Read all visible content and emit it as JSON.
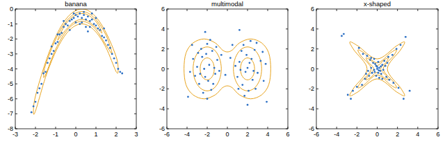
{
  "chart_data": [
    {
      "type": "scatter",
      "title": "banana",
      "xlim": [
        -3,
        3
      ],
      "ylim": [
        -8,
        0
      ],
      "xticks": [
        -3,
        -2,
        -1,
        0,
        1,
        2,
        3
      ],
      "yticks": [
        -8,
        -7,
        -6,
        -5,
        -4,
        -3,
        -2,
        -1,
        0
      ],
      "grid": false,
      "series": [
        {
          "type": "scatter",
          "color": "#2b6fc4",
          "marker": "dot",
          "x": [
            -2.2,
            -2.1,
            -2.0,
            -1.9,
            -1.8,
            -1.7,
            -1.6,
            -1.5,
            -1.4,
            -1.3,
            -1.2,
            -1.1,
            -1.0,
            -0.9,
            -0.8,
            -0.7,
            -0.6,
            -0.5,
            -0.4,
            -0.3,
            -0.2,
            -0.1,
            0,
            0.1,
            0.2,
            0.3,
            0.4,
            0.5,
            0.6,
            0.7,
            0.8,
            0.9,
            1.0,
            1.1,
            1.2,
            1.3,
            1.4,
            1.5,
            1.6,
            1.7,
            1.8,
            1.9,
            2.0,
            2.1,
            2.2,
            2.3,
            0.2,
            0.5,
            -0.3,
            0.8,
            0.0,
            0.4,
            -0.6,
            1.0,
            -1.2,
            0.6,
            1.4,
            -0.9,
            0.3,
            -0.1,
            0.7
          ],
          "values": [
            -6.9,
            -6.5,
            -6.2,
            -5.6,
            -5.3,
            -5.0,
            -4.3,
            -4.2,
            -3.6,
            -3.3,
            -3.0,
            -2.8,
            -2.3,
            -2.2,
            -1.7,
            -1.6,
            -1.2,
            -1.0,
            -1.1,
            -0.8,
            -0.7,
            -0.6,
            -0.4,
            -0.5,
            -0.3,
            -0.6,
            -0.4,
            -0.7,
            -0.5,
            -0.8,
            -0.7,
            -1.0,
            -1.1,
            -1.3,
            -1.4,
            -1.8,
            -1.9,
            -2.1,
            -2.4,
            -2.6,
            -3.0,
            -3.3,
            -3.6,
            -4.0,
            -4.2,
            -4.3,
            -1.0,
            -1.2,
            -1.4,
            -0.3,
            -0.9,
            -0.2,
            -0.8,
            -0.6,
            -2.5,
            -1.5,
            -1.3,
            -1.7,
            -0.9,
            -0.3,
            -1.2
          ]
        },
        {
          "type": "line",
          "color": "#e8a31c",
          "line_style": "solid",
          "x": [
            -2.1,
            -2,
            -1.5,
            -1,
            -0.5,
            0,
            0.5,
            1,
            1.5,
            2,
            2.1,
            2,
            1.5,
            1,
            0.5,
            0,
            -0.5,
            -1,
            -1.5,
            -2,
            -2.1
          ],
          "values": [
            -6.84,
            -5.82,
            -3.56,
            -1.86,
            -0.7,
            -0.1,
            -0.04,
            -0.54,
            -1.58,
            -3.18,
            -4.06,
            -4.18,
            -2.58,
            -1.54,
            -1.04,
            -1.1,
            -1.7,
            -2.86,
            -4.56,
            -6.82,
            -6.84
          ]
        },
        {
          "type": "line",
          "color": "#e8a31c",
          "line_style": "solid",
          "x": [
            -1.6,
            -1.5,
            -1,
            -0.5,
            0,
            0.5,
            1,
            1.5,
            1.8,
            1.5,
            1,
            0.5,
            0,
            -0.5,
            -1,
            -1.5,
            -1.6
          ],
          "values": [
            -4.47,
            -3.73,
            -2.03,
            -0.87,
            -0.27,
            -0.21,
            -0.71,
            -1.75,
            -2.98,
            -2.41,
            -1.37,
            -0.87,
            -0.93,
            -1.53,
            -2.69,
            -4.39,
            -4.47
          ]
        },
        {
          "type": "line",
          "color": "#e8a31c",
          "line_style": "solid",
          "x": [
            -0.9,
            -0.5,
            0,
            0.5,
            1,
            1.3,
            1,
            0.5,
            0,
            -0.5,
            -0.9
          ],
          "values": [
            -2.08,
            -1.0,
            -0.4,
            -0.34,
            -0.84,
            -1.6,
            -1.24,
            -0.74,
            -0.8,
            -1.4,
            -2.08
          ]
        }
      ]
    },
    {
      "type": "scatter",
      "title": "multimodal",
      "xlim": [
        -6,
        6
      ],
      "ylim": [
        -6,
        6
      ],
      "xticks": [
        -6,
        -4,
        -2,
        0,
        2,
        4,
        6
      ],
      "yticks": [
        -6,
        -4,
        -2,
        0,
        2,
        4,
        6
      ],
      "grid": false,
      "series": [
        {
          "type": "scatter",
          "color": "#2b6fc4",
          "marker": "dot",
          "x": [
            -2.5,
            -1.8,
            -2.2,
            -1.5,
            -3.0,
            -2.8,
            -1.2,
            -2.0,
            -1.6,
            -3.4,
            -2.3,
            -1.9,
            -1.0,
            -2.6,
            -3.2,
            -1.4,
            -2.1,
            -0.8,
            -2.4,
            -3.7,
            -1.7,
            -2.9,
            -1.1,
            -2.7,
            -2.0,
            -3.5,
            -1.3,
            -2.2,
            -0.6,
            -3.9,
            2.4,
            1.8,
            2.2,
            1.5,
            3.0,
            2.7,
            1.2,
            2.1,
            1.6,
            3.3,
            2.5,
            1.9,
            1.0,
            2.8,
            3.6,
            1.4,
            2.0,
            0.8,
            2.3,
            3.8,
            1.7,
            2.9,
            1.1,
            2.6,
            2.0,
            3.5,
            1.3,
            0.5,
            3.9,
            -0.2,
            0.3,
            1.2
          ],
          "values": [
            1.2,
            0.4,
            -0.8,
            1.8,
            0.2,
            -1.5,
            -0.5,
            2.5,
            -2.1,
            1.0,
            0.0,
            -1.2,
            0.9,
            2.0,
            -0.7,
            -1.5,
            1.5,
            -0.2,
            -2.4,
            -0.3,
            2.9,
            1.6,
            2.2,
            -0.5,
            -3.0,
            2.4,
            0.1,
            3.7,
            1.4,
            -2.8,
            1.0,
            -0.3,
            0.6,
            -1.6,
            -0.4,
            1.9,
            0.7,
            -2.2,
            2.4,
            0.8,
            -1.1,
            1.4,
            -0.8,
            -2.0,
            -1.2,
            1.8,
            0.1,
            0.3,
            2.8,
            0.5,
            -2.7,
            2.6,
            -2.0,
            -0.2,
            -3.6,
            1.7,
            -0.1,
            2.4,
            -3.3,
            -0.6,
            1.1,
            3.9
          ]
        },
        {
          "type": "line",
          "color": "#e8a31c",
          "line_style": "solid",
          "x": [
            -1.3,
            -1.39,
            -1.65,
            -2,
            -2.35,
            -2.61,
            -2.7,
            -2.61,
            -2.35,
            -2,
            -1.65,
            -1.39,
            -1.3
          ],
          "values": [
            0,
            0.55,
            0.95,
            1.1,
            0.95,
            0.55,
            0,
            -0.55,
            -0.95,
            -1.1,
            -0.95,
            -0.55,
            0
          ]
        },
        {
          "type": "line",
          "color": "#e8a31c",
          "line_style": "solid",
          "x": [
            2.7,
            2.61,
            2.35,
            2,
            1.65,
            1.39,
            1.3,
            1.39,
            1.65,
            2,
            2.35,
            2.61,
            2.7
          ],
          "values": [
            0,
            0.55,
            0.95,
            1.1,
            0.95,
            0.55,
            0,
            -0.55,
            -0.95,
            -1.1,
            -0.95,
            -0.55,
            0
          ]
        },
        {
          "type": "line",
          "color": "#e8a31c",
          "line_style": "solid",
          "x": [
            -0.6,
            -0.79,
            -1.3,
            -2,
            -2.7,
            -3.21,
            -3.4,
            -3.21,
            -2.7,
            -2,
            -1.3,
            -0.79,
            -0.6
          ],
          "values": [
            0,
            1.1,
            1.91,
            2.2,
            1.91,
            1.1,
            0,
            -1.1,
            -1.91,
            -2.2,
            -1.91,
            -1.1,
            0
          ]
        },
        {
          "type": "line",
          "color": "#e8a31c",
          "line_style": "solid",
          "x": [
            3.4,
            3.21,
            2.7,
            2,
            1.3,
            0.79,
            0.6,
            0.79,
            1.3,
            2,
            2.7,
            3.21,
            3.4
          ],
          "values": [
            0,
            1.1,
            1.91,
            2.2,
            1.91,
            1.1,
            0,
            -1.1,
            -1.91,
            -2.2,
            -1.91,
            -1.1,
            0
          ]
        },
        {
          "type": "line",
          "color": "#e8a31c",
          "line_style": "solid",
          "x": [
            4.3,
            4.1,
            3.4,
            2.3,
            1.2,
            0.5,
            0,
            -0.5,
            -1.2,
            -2.3,
            -3.4,
            -4.1,
            -4.3,
            -4.1,
            -3.4,
            -2.3,
            -1.2,
            -0.5,
            0,
            0.5,
            1.2,
            2.3,
            3.4,
            4.1,
            4.3
          ],
          "values": [
            0,
            1.6,
            2.6,
            3.0,
            2.6,
            1.9,
            1.7,
            1.9,
            2.6,
            3.0,
            2.6,
            1.6,
            0,
            -1.6,
            -2.6,
            -3.0,
            -2.6,
            -1.9,
            -1.7,
            -1.9,
            -2.6,
            -3.0,
            -2.6,
            -1.6,
            0
          ]
        }
      ]
    },
    {
      "type": "scatter",
      "title": "x-shaped",
      "xlim": [
        -6,
        6
      ],
      "ylim": [
        -6,
        6
      ],
      "xticks": [
        -6,
        -4,
        -2,
        0,
        2,
        4,
        6
      ],
      "yticks": [
        -6,
        -4,
        -2,
        0,
        2,
        4,
        6
      ],
      "grid": false,
      "series": [
        {
          "type": "scatter",
          "color": "#2b6fc4",
          "marker": "dot",
          "x": [
            0,
            0.2,
            -0.1,
            0.3,
            -0.3,
            0.1,
            -0.2,
            0.5,
            -0.5,
            0.4,
            -0.4,
            0.7,
            -0.8,
            0.9,
            -0.7,
            1.1,
            -1.2,
            1.2,
            -1.0,
            1.5,
            -1.5,
            1.6,
            -1.4,
            1.9,
            -2.0,
            2.1,
            -1.8,
            2.3,
            -2.4,
            -3.3,
            -3.5,
            2.8,
            -2.9,
            2.6,
            0.6,
            -0.6,
            0.1,
            -0.1,
            0.8,
            -0.9,
            0.2,
            -0.3,
            1.0,
            -1.1,
            0.5,
            -0.6,
            0.0,
            0.15,
            -0.25,
            0.35,
            3.2,
            -2.6
          ],
          "values": [
            0,
            0.1,
            0.3,
            -0.2,
            -0.1,
            -0.4,
            0.5,
            0.4,
            -0.4,
            -0.5,
            0.6,
            0.8,
            -0.7,
            -0.8,
            0.9,
            1.2,
            -1.0,
            -1.1,
            1.3,
            1.4,
            -1.6,
            -1.4,
            1.5,
            2.0,
            -1.8,
            -1.9,
            2.1,
            2.4,
            -2.2,
            3.5,
            3.3,
            3.2,
            -2.6,
            -3.0,
            -0.1,
            0.1,
            0.7,
            -0.7,
            0.3,
            -0.2,
            -0.9,
            1.0,
            0.6,
            -0.5,
            -1.0,
            1.1,
            0.2,
            -0.15,
            -0.3,
            0.25,
            -2.2,
            -3.0
          ]
        },
        {
          "type": "line",
          "color": "#e8a31c",
          "line_style": "solid",
          "x": [
            1.0,
            2.3,
            2.7,
            1.9,
            0,
            -1.9,
            -2.7,
            -2.3,
            -1.0,
            -2.3,
            -2.7,
            -1.9,
            0,
            1.9,
            2.7,
            2.3,
            1.0
          ],
          "values": [
            0,
            1.9,
            2.7,
            2.3,
            1.0,
            2.3,
            2.7,
            1.9,
            0,
            -1.9,
            -2.7,
            -2.3,
            -1.0,
            -2.3,
            -2.7,
            -1.9,
            0
          ]
        },
        {
          "type": "line",
          "color": "#e8a31c",
          "line_style": "solid",
          "x": [
            0.6,
            1.6,
            1.9,
            1.3,
            0,
            -1.3,
            -1.9,
            -1.6,
            -0.6,
            -1.6,
            -1.9,
            -1.3,
            0,
            1.3,
            1.9,
            1.6,
            0.6
          ],
          "values": [
            0,
            1.3,
            1.9,
            1.6,
            0.6,
            1.6,
            1.9,
            1.3,
            0,
            -1.3,
            -1.9,
            -1.6,
            -0.6,
            -1.6,
            -1.9,
            -1.3,
            0
          ]
        },
        {
          "type": "line",
          "color": "#e8a31c",
          "line_style": "solid",
          "x": [
            0.35,
            0.9,
            1.1,
            0.7,
            0,
            -0.7,
            -1.1,
            -0.9,
            -0.35,
            -0.9,
            -1.1,
            -0.7,
            0,
            0.7,
            1.1,
            0.9,
            0.35
          ],
          "values": [
            0,
            0.7,
            1.1,
            0.9,
            0.35,
            0.9,
            1.1,
            0.7,
            0,
            -0.7,
            -1.1,
            -0.9,
            -0.35,
            -0.9,
            -1.1,
            -0.7,
            0
          ]
        }
      ]
    }
  ]
}
